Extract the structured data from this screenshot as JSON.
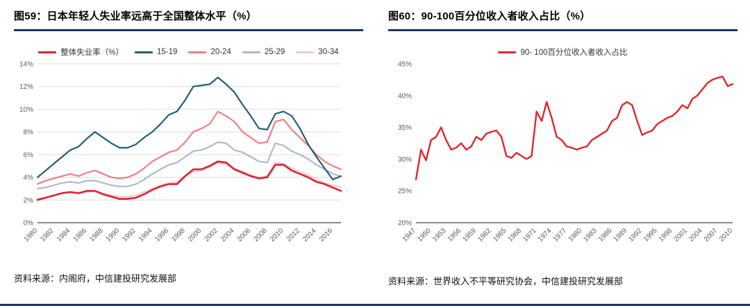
{
  "page": {
    "background": "#ffffff",
    "accent_color": "#17375e"
  },
  "chart_data": [
    {
      "type": "line",
      "title": "图59：日本年轻人失业率远高于全国整体水平（%）",
      "source": "资料来源：内阁府，中信建投研究发展部",
      "xlim": [
        1980,
        2017
      ],
      "ylim": [
        0,
        14
      ],
      "yticks": [
        0,
        2,
        4,
        6,
        8,
        10,
        12,
        14
      ],
      "ytick_suffix": "%",
      "xticks": [
        1980,
        1982,
        1984,
        1986,
        1988,
        1990,
        1992,
        1994,
        1996,
        1998,
        2000,
        2002,
        2004,
        2006,
        2008,
        2010,
        2012,
        2014,
        2016
      ],
      "grid": true,
      "legend_position": "top",
      "x": [
        1980,
        1981,
        1982,
        1983,
        1984,
        1985,
        1986,
        1987,
        1988,
        1989,
        1990,
        1991,
        1992,
        1993,
        1994,
        1995,
        1996,
        1997,
        1998,
        1999,
        2000,
        2001,
        2002,
        2003,
        2004,
        2005,
        2006,
        2007,
        2008,
        2009,
        2010,
        2011,
        2012,
        2013,
        2014,
        2015,
        2016,
        2017
      ],
      "series": [
        {
          "name": "整体失业率（%）",
          "color": "#d9232e",
          "width": 2.6,
          "values": [
            2.0,
            2.2,
            2.4,
            2.6,
            2.7,
            2.6,
            2.8,
            2.8,
            2.5,
            2.3,
            2.1,
            2.1,
            2.2,
            2.5,
            2.9,
            3.2,
            3.4,
            3.4,
            4.1,
            4.7,
            4.7,
            5.0,
            5.4,
            5.3,
            4.7,
            4.4,
            4.1,
            3.9,
            4.0,
            5.1,
            5.1,
            4.6,
            4.3,
            4.0,
            3.6,
            3.4,
            3.1,
            2.8
          ]
        },
        {
          "name": "15-19",
          "color": "#215e79",
          "width": 2.2,
          "values": [
            4.0,
            4.6,
            5.2,
            5.8,
            6.4,
            6.7,
            7.4,
            8.0,
            7.5,
            7.0,
            6.6,
            6.6,
            6.9,
            7.5,
            8.0,
            8.7,
            9.5,
            9.8,
            10.8,
            12.0,
            12.1,
            12.2,
            12.8,
            12.2,
            11.5,
            10.4,
            9.4,
            8.3,
            8.2,
            9.6,
            9.8,
            9.4,
            8.3,
            6.9,
            5.8,
            4.8,
            3.8,
            4.1
          ]
        },
        {
          "name": "20-24",
          "color": "#f27d85",
          "width": 2.2,
          "values": [
            3.4,
            3.7,
            3.9,
            4.1,
            4.3,
            4.1,
            4.4,
            4.6,
            4.3,
            4.0,
            3.9,
            4.0,
            4.3,
            4.8,
            5.4,
            5.8,
            6.2,
            6.4,
            7.1,
            8.0,
            8.3,
            8.7,
            9.8,
            9.4,
            8.9,
            8.0,
            7.5,
            7.0,
            7.1,
            8.9,
            9.1,
            8.2,
            7.5,
            6.8,
            6.0,
            5.4,
            5.0,
            4.7
          ]
        },
        {
          "name": "25-29",
          "color": "#a9bcc8",
          "width": 2.2,
          "values": [
            3.0,
            3.1,
            3.3,
            3.5,
            3.6,
            3.5,
            3.7,
            3.7,
            3.5,
            3.3,
            3.2,
            3.2,
            3.4,
            3.8,
            4.3,
            4.7,
            5.1,
            5.3,
            5.8,
            6.3,
            6.4,
            6.7,
            7.1,
            7.0,
            6.4,
            6.2,
            5.8,
            5.4,
            5.3,
            7.0,
            6.8,
            6.3,
            6.0,
            5.6,
            5.1,
            4.7,
            4.3,
            4.1
          ]
        },
        {
          "name": "30-34",
          "color": "#f6c9d0",
          "width": 2.2,
          "values": [
            2.1,
            2.2,
            2.4,
            2.6,
            2.7,
            2.6,
            2.7,
            2.8,
            2.6,
            2.4,
            2.3,
            2.3,
            2.4,
            2.7,
            3.0,
            3.3,
            3.5,
            3.6,
            4.1,
            4.5,
            4.6,
            4.9,
            5.3,
            5.1,
            4.8,
            4.5,
            4.2,
            4.0,
            4.1,
            5.3,
            5.2,
            4.8,
            4.5,
            4.2,
            3.8,
            3.5,
            3.3,
            3.1
          ]
        }
      ]
    },
    {
      "type": "line",
      "title": "图60：90-100百分位收入者收入占比（%）",
      "source": "资料来源：世界收入不平等研究协会，中信建投研究发展部",
      "xlim": [
        1947,
        2010
      ],
      "ylim": [
        20,
        45
      ],
      "yticks": [
        20,
        25,
        30,
        35,
        40,
        45
      ],
      "ytick_suffix": "%",
      "xticks": [
        1947,
        1950,
        1953,
        1956,
        1959,
        1962,
        1965,
        1968,
        1971,
        1974,
        1977,
        1980,
        1983,
        1986,
        1989,
        1992,
        1995,
        1998,
        2001,
        2004,
        2007,
        2010
      ],
      "grid": false,
      "legend_position": "top",
      "x": [
        1947,
        1948,
        1949,
        1950,
        1951,
        1952,
        1953,
        1954,
        1955,
        1956,
        1957,
        1958,
        1959,
        1960,
        1961,
        1962,
        1963,
        1964,
        1965,
        1966,
        1967,
        1968,
        1969,
        1970,
        1971,
        1972,
        1973,
        1974,
        1975,
        1976,
        1977,
        1978,
        1979,
        1980,
        1981,
        1982,
        1983,
        1984,
        1985,
        1986,
        1987,
        1988,
        1989,
        1990,
        1991,
        1992,
        1993,
        1994,
        1995,
        1996,
        1997,
        1998,
        1999,
        2000,
        2001,
        2002,
        2003,
        2004,
        2005,
        2006,
        2007,
        2008,
        2009,
        2010
      ],
      "series": [
        {
          "name": "90- 100百分位收入者收入占比",
          "color": "#e02629",
          "width": 2.4,
          "values": [
            26.8,
            31.5,
            29.8,
            33.0,
            33.5,
            35.0,
            33.0,
            31.5,
            31.8,
            32.5,
            31.5,
            32.0,
            33.5,
            33.0,
            34.0,
            34.3,
            34.5,
            33.5,
            30.5,
            30.2,
            31.0,
            30.5,
            30.0,
            30.5,
            37.5,
            36.0,
            39.0,
            36.5,
            33.5,
            33.0,
            32.0,
            31.8,
            31.5,
            31.8,
            32.0,
            33.0,
            33.5,
            34.0,
            34.5,
            36.0,
            36.5,
            38.5,
            39.0,
            38.5,
            36.0,
            33.8,
            34.2,
            34.5,
            35.5,
            36.0,
            36.5,
            36.8,
            37.5,
            38.5,
            38.0,
            39.5,
            40.0,
            41.0,
            42.0,
            42.5,
            42.8,
            43.0,
            41.5,
            41.8
          ]
        }
      ]
    }
  ]
}
